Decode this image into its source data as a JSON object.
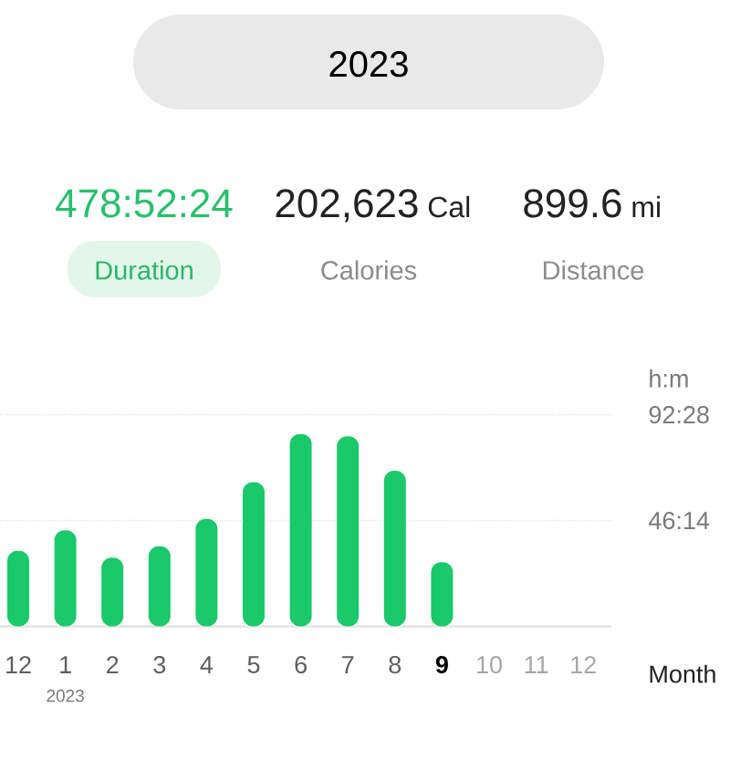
{
  "chart_data": {
    "type": "bar",
    "title": "2023",
    "categories": [
      "12",
      "1",
      "2",
      "3",
      "4",
      "5",
      "6",
      "7",
      "8",
      "9",
      "10",
      "11",
      "12"
    ],
    "values": [
      33,
      42,
      30,
      35,
      47,
      63,
      84,
      83,
      68,
      28,
      null,
      null,
      null
    ],
    "color": "#19c96a",
    "xlabel": "Month",
    "ylabel": "h:m",
    "ylim": [
      0,
      92.4667
    ],
    "yticks": [
      {
        "value": 46.2333,
        "label": "46:14"
      },
      {
        "value": 92.4667,
        "label": "92:28"
      }
    ],
    "grid": "y",
    "annotations": [
      "478:52:24",
      "202,623",
      "Cal",
      "899.6",
      "mi",
      "Duration",
      "Calories",
      "Distance",
      "2023"
    ]
  }
}
